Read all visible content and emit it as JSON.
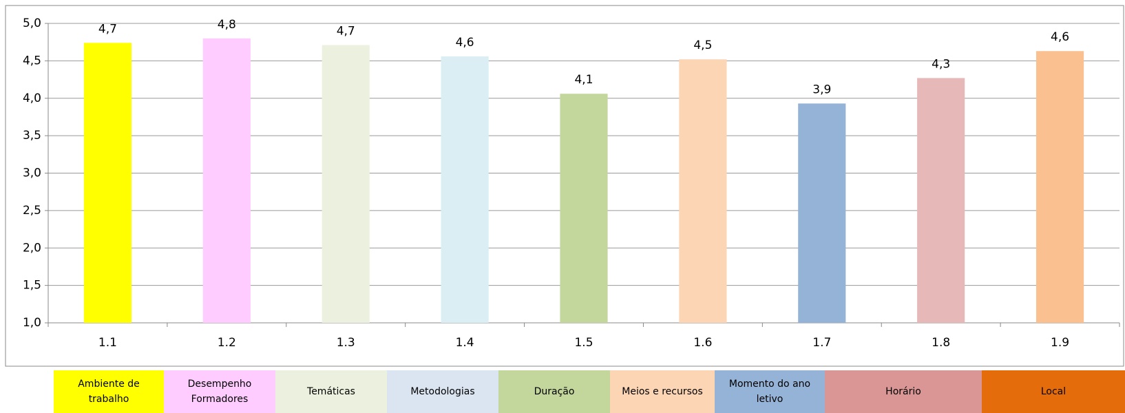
{
  "chart_data": {
    "type": "bar",
    "categories": [
      "1.1",
      "1.2",
      "1.3",
      "1.4",
      "1.5",
      "1.6",
      "1.7",
      "1.8",
      "1.9"
    ],
    "values": [
      4.74,
      4.8,
      4.71,
      4.56,
      4.06,
      4.52,
      3.93,
      4.27,
      4.63
    ],
    "value_labels": [
      "4,7",
      "4,8",
      "4,7",
      "4,6",
      "4,1",
      "4,5",
      "3,9",
      "4,3",
      "4,6"
    ],
    "colors": [
      "#ffff00",
      "#ffccff",
      "#ebf1de",
      "#daeef3",
      "#c3d69b",
      "#fcd5b5",
      "#95b3d7",
      "#e6b9b8",
      "#fac090"
    ],
    "ylim": [
      1,
      5
    ],
    "yticks": [
      {
        "value": 1,
        "label": "1,0"
      },
      {
        "value": 1.5,
        "label": "1,5"
      },
      {
        "value": 2,
        "label": "2,0"
      },
      {
        "value": 2.5,
        "label": "2,5"
      },
      {
        "value": 3,
        "label": "3,0"
      },
      {
        "value": 3.5,
        "label": "3,5"
      },
      {
        "value": 4,
        "label": "4,0"
      },
      {
        "value": 4.5,
        "label": "4,5"
      },
      {
        "value": 5,
        "label": "5,0"
      }
    ],
    "grid": true,
    "legend": [
      {
        "label": "Ambiente de trabalho",
        "color": "#ffff00"
      },
      {
        "label": "Desempenho Formadores",
        "color": "#ffccff"
      },
      {
        "label": "Temáticas",
        "color": "#ebf1de"
      },
      {
        "label": "Metodologias",
        "color": "#dbe5f1"
      },
      {
        "label": "Duração",
        "color": "#c3d69b"
      },
      {
        "label": "Meios e recursos",
        "color": "#fcd5b5"
      },
      {
        "label": "Momento do ano letivo",
        "color": "#95b3d7"
      },
      {
        "label": "Horário",
        "color": "#d99694"
      },
      {
        "label": "Local",
        "color": "#e46c0a"
      }
    ]
  }
}
